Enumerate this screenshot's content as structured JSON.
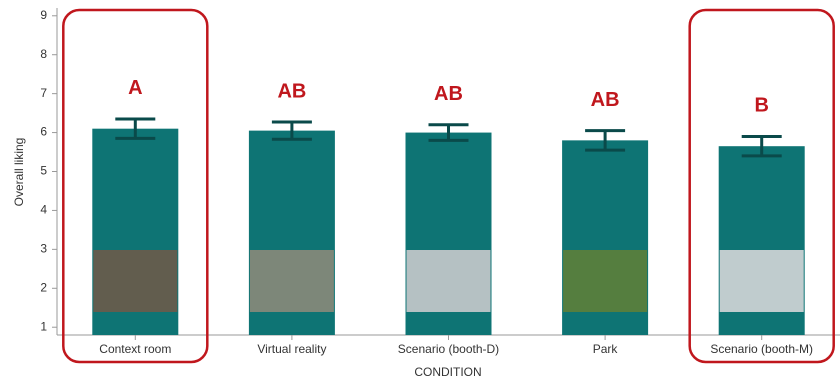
{
  "chart_data": {
    "type": "bar",
    "y_label": "Overall liking",
    "x_label": "CONDITION",
    "categories": [
      "Context room",
      "Virtual reality",
      "Scenario (booth-D)",
      "Park",
      "Scenario (booth-M)"
    ],
    "values": [
      6.1,
      6.05,
      6.0,
      5.8,
      5.65
    ],
    "errors": [
      0.25,
      0.22,
      0.2,
      0.25,
      0.25
    ],
    "letters": [
      "A",
      "AB",
      "AB",
      "AB",
      "B"
    ],
    "highlight": [
      0,
      4
    ],
    "color": "#0e7474",
    "letter_color": "#c0171d",
    "ylim": [
      0.8,
      9.2
    ],
    "yticks": [
      1,
      2,
      3,
      4,
      5,
      6,
      7,
      8,
      9
    ],
    "grid": false
  }
}
